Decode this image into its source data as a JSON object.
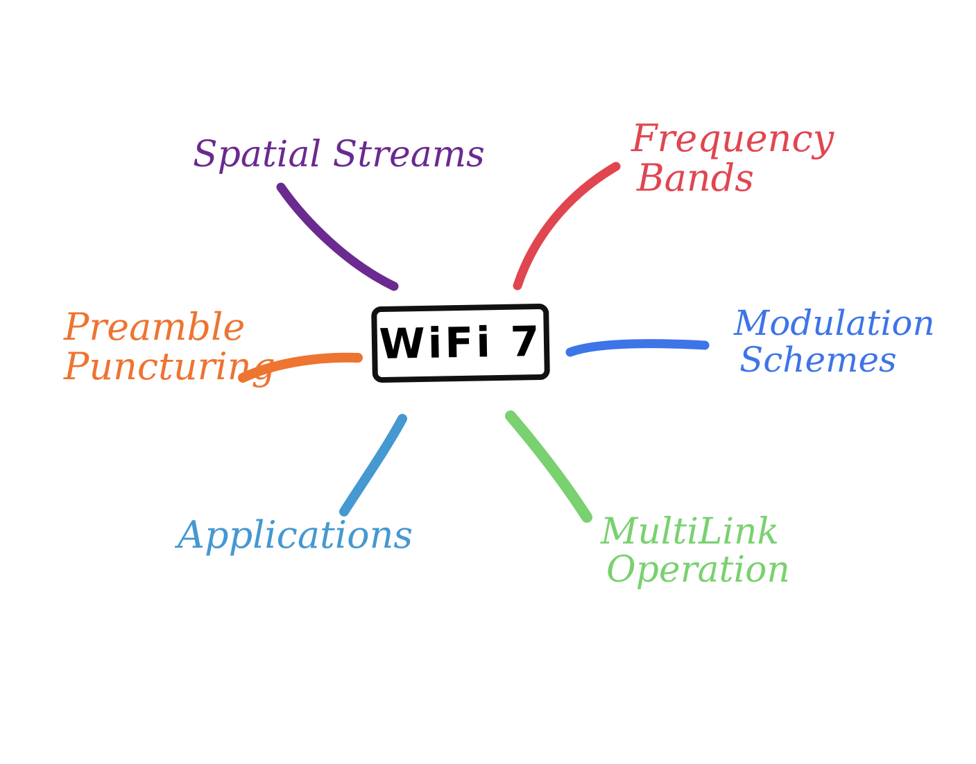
{
  "center": {
    "label": "WiFi 7"
  },
  "branches": [
    {
      "id": "spatial",
      "lines": [
        "Spatial Streams"
      ],
      "color": "#6a2a8f"
    },
    {
      "id": "freq",
      "lines": [
        "Frequency",
        "Bands"
      ],
      "color": "#e04650"
    },
    {
      "id": "mod",
      "lines": [
        "Modulation",
        "Schemes"
      ],
      "color": "#3d74e8"
    },
    {
      "id": "mlo",
      "lines": [
        "MultiLink",
        "Operation"
      ],
      "color": "#79d16f"
    },
    {
      "id": "app",
      "lines": [
        "Applications"
      ],
      "color": "#4598d0"
    },
    {
      "id": "pre",
      "lines": [
        "Preamble",
        "Puncturing"
      ],
      "color": "#ed7431"
    }
  ],
  "colors": {
    "center_border": "#111111",
    "background": "#ffffff"
  }
}
